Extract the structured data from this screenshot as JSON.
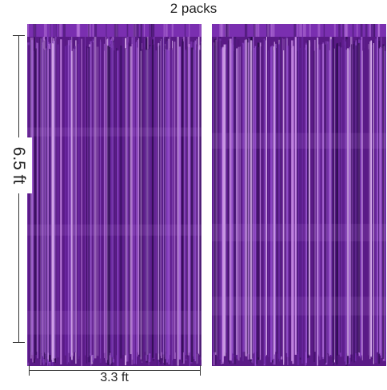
{
  "title": "2 packs",
  "dimensions": {
    "height_label": "6.5 ft",
    "width_label": "3.3 ft"
  },
  "colors": {
    "curtain_base": "#5a1a86",
    "curtain_highlight": "#c88ae6",
    "curtain_shadow": "#2a0a4a",
    "header_band": "#7a2fb0"
  },
  "products": [
    {
      "name": "purple-foil-fringe-curtain"
    },
    {
      "name": "purple-foil-fringe-curtain"
    }
  ]
}
